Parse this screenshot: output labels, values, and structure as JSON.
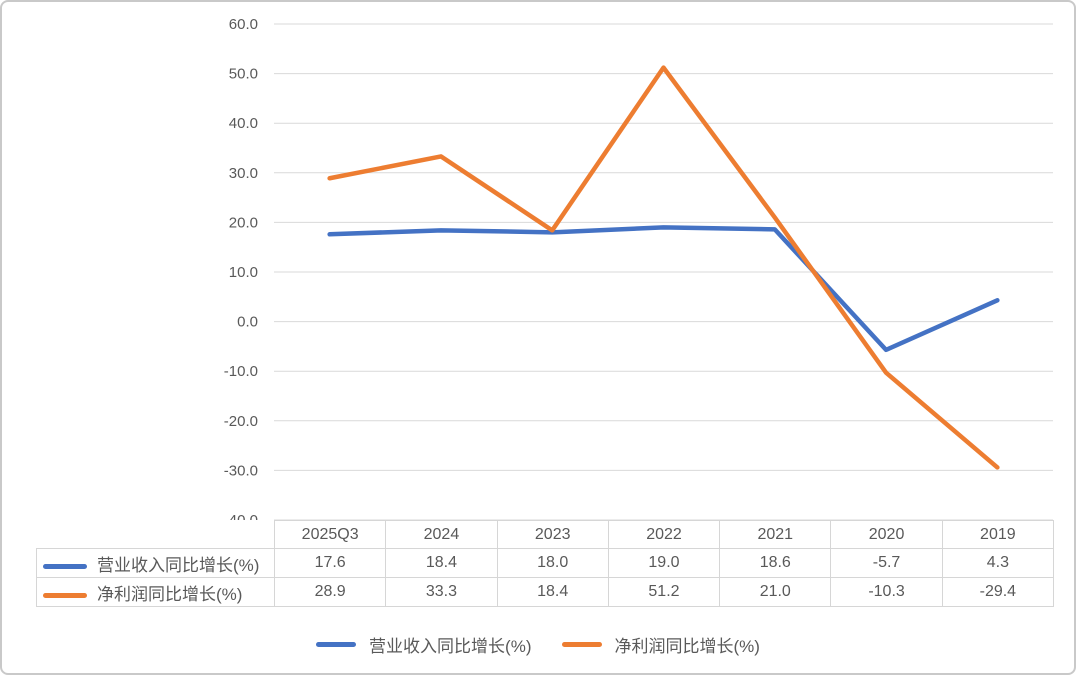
{
  "chart_data": {
    "type": "line",
    "title": "",
    "xlabel": "",
    "ylabel": "",
    "categories": [
      "2025Q3",
      "2024",
      "2023",
      "2022",
      "2021",
      "2020",
      "2019"
    ],
    "series": [
      {
        "name": "营业收入同比增长(%)",
        "color": "#4472C4",
        "values": [
          17.6,
          18.4,
          18.0,
          19.0,
          18.6,
          -5.7,
          4.3
        ]
      },
      {
        "name": "净利润同比增长(%)",
        "color": "#ED7D31",
        "values": [
          28.9,
          33.3,
          18.4,
          51.2,
          21.0,
          -10.3,
          -29.4
        ]
      }
    ],
    "ylim": [
      -40,
      60
    ],
    "ytick_step": 10,
    "ytick_decimals": 1,
    "grid": "horizontal",
    "legend_position": "bottom",
    "data_table_shown": true,
    "colors": {
      "gridline": "#D9D9D9",
      "axis_text": "#595959",
      "table_border": "#D6D6D6",
      "background": "#FFFFFF"
    }
  }
}
